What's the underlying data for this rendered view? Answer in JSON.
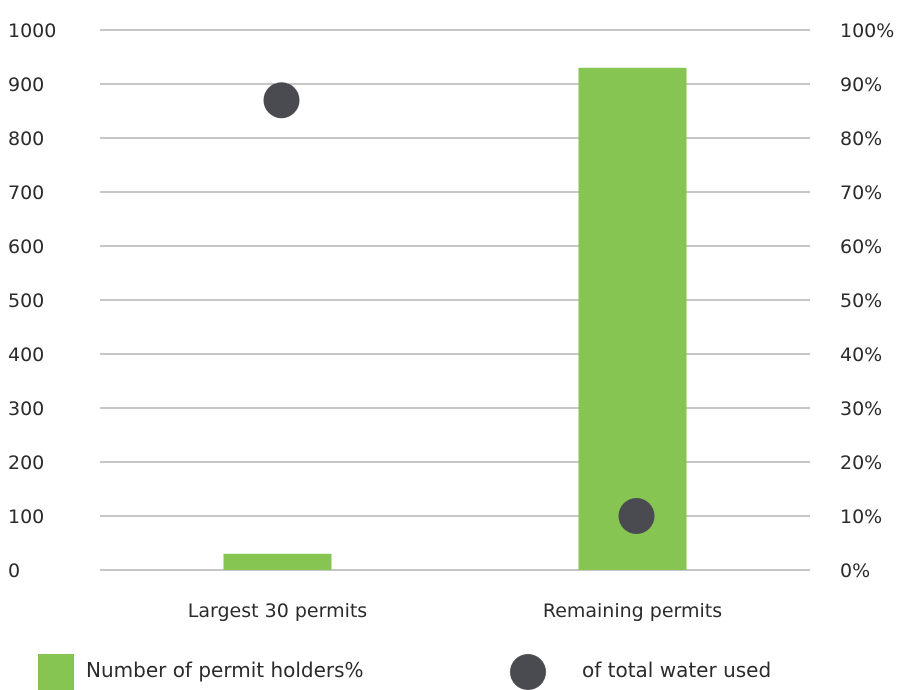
{
  "chart_data": {
    "type": "bar",
    "categories": [
      "Largest 30 permits",
      "Remaining permits"
    ],
    "series": [
      {
        "name": "Number of permit holders%",
        "kind": "bar",
        "axis": "left",
        "color": "#86c552",
        "values": [
          30,
          930
        ]
      },
      {
        "name": "of total water used",
        "kind": "point",
        "axis": "right",
        "color": "#4a4b51",
        "values": [
          87,
          10
        ]
      }
    ],
    "y_left": {
      "ylim": [
        0,
        1000
      ],
      "ticks": [
        "0",
        "100",
        "200",
        "300",
        "400",
        "500",
        "600",
        "700",
        "800",
        "900",
        "1000"
      ]
    },
    "y_right": {
      "ylim": [
        0,
        100
      ],
      "ticks": [
        "0%",
        "10%",
        "20%",
        "30%",
        "40%",
        "50%",
        "60%",
        "70%",
        "80%",
        "90%",
        "100%"
      ]
    },
    "grid": true,
    "legend": "bottom"
  }
}
